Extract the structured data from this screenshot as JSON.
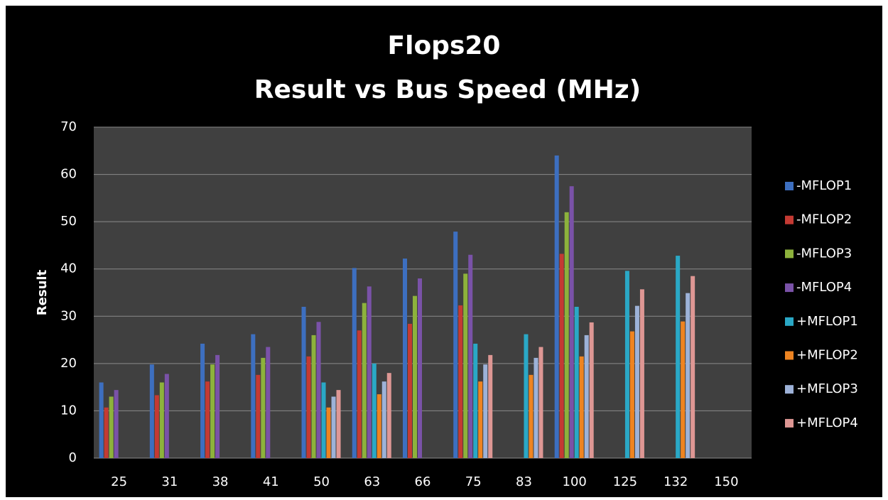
{
  "chart_data": {
    "type": "bar",
    "title": "Flops20",
    "subtitle": "Result vs Bus Speed (MHz)",
    "y_label": "Result",
    "categories": [
      "25",
      "31",
      "38",
      "41",
      "50",
      "63",
      "66",
      "75",
      "83",
      "100",
      "125",
      "132",
      "150"
    ],
    "series": [
      {
        "name": "-MFLOP1",
        "color": "#3d6fc0",
        "values": [
          16,
          19.8,
          24.2,
          26.2,
          32,
          40.2,
          42.2,
          47.9,
          null,
          64,
          null,
          null,
          null
        ]
      },
      {
        "name": "-MFLOP2",
        "color": "#c43a33",
        "values": [
          10.7,
          13.3,
          16.2,
          17.6,
          21.5,
          27,
          28.4,
          32.3,
          null,
          43.2,
          null,
          null,
          null
        ]
      },
      {
        "name": "-MFLOP3",
        "color": "#8db23c",
        "values": [
          13,
          16,
          19.8,
          21.2,
          26,
          32.8,
          34.3,
          39,
          null,
          52,
          null,
          null,
          null
        ]
      },
      {
        "name": "-MFLOP4",
        "color": "#7a52a8",
        "values": [
          14.4,
          17.8,
          21.8,
          23.5,
          28.8,
          36.3,
          38,
          43,
          null,
          57.5,
          null,
          null,
          null
        ]
      },
      {
        "name": "+MFLOP1",
        "color": "#2aa8c6",
        "values": [
          null,
          null,
          null,
          null,
          16,
          20,
          null,
          24.2,
          26.2,
          32,
          39.6,
          42.8,
          null
        ]
      },
      {
        "name": "+MFLOP2",
        "color": "#ee8421",
        "values": [
          null,
          null,
          null,
          null,
          10.7,
          13.5,
          null,
          16.2,
          17.6,
          21.5,
          26.8,
          28.9,
          null
        ]
      },
      {
        "name": "+MFLOP3",
        "color": "#9db2d8",
        "values": [
          null,
          null,
          null,
          null,
          13,
          16.2,
          null,
          19.8,
          21.2,
          26,
          32.2,
          34.9,
          null
        ]
      },
      {
        "name": "+MFLOP4",
        "color": "#de9794",
        "values": [
          null,
          null,
          null,
          null,
          14.4,
          18,
          null,
          21.8,
          23.5,
          28.7,
          35.7,
          38.5,
          null
        ]
      }
    ],
    "ylim": [
      0,
      70
    ],
    "yticks": [
      0,
      10,
      20,
      30,
      40,
      50,
      60,
      70
    ],
    "grid": true,
    "legend": "right"
  }
}
